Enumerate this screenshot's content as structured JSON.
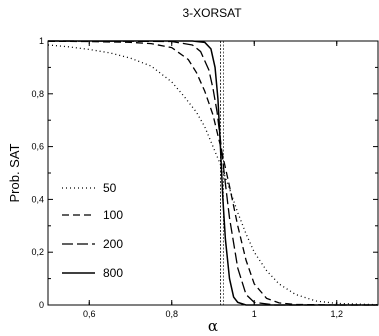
{
  "chart_data": {
    "type": "line",
    "title": "3-XORSAT",
    "xlabel": "α",
    "ylabel": "Prob. SAT",
    "xlim": [
      0.5,
      1.3
    ],
    "ylim": [
      0,
      1
    ],
    "x_ticks": [
      {
        "value": 0.6,
        "label": "0,6"
      },
      {
        "value": 0.8,
        "label": "0,8"
      },
      {
        "value": 1.0,
        "label": "1"
      },
      {
        "value": 1.2,
        "label": "1,2"
      }
    ],
    "y_ticks": [
      {
        "value": 0,
        "label": "0"
      },
      {
        "value": 0.2,
        "label": "0,2"
      },
      {
        "value": 0.4,
        "label": "0,4"
      },
      {
        "value": 0.6,
        "label": "0,6"
      },
      {
        "value": 0.8,
        "label": "0,8"
      },
      {
        "value": 1.0,
        "label": "1"
      }
    ],
    "vline_x": 0.918,
    "grid": false,
    "legend_position": "lower-left",
    "series": [
      {
        "name": "50",
        "style": "dotted",
        "x": [
          0.5,
          0.55,
          0.6,
          0.65,
          0.7,
          0.75,
          0.8,
          0.83,
          0.86,
          0.88,
          0.9,
          0.92,
          0.94,
          0.96,
          0.98,
          1.0,
          1.03,
          1.06,
          1.1,
          1.15,
          1.2,
          1.3
        ],
        "y": [
          0.985,
          0.978,
          0.968,
          0.955,
          0.935,
          0.905,
          0.845,
          0.79,
          0.73,
          0.675,
          0.6,
          0.525,
          0.44,
          0.35,
          0.27,
          0.2,
          0.13,
          0.08,
          0.04,
          0.015,
          0.006,
          0.001
        ]
      },
      {
        "name": "100",
        "style": "dashed",
        "x": [
          0.5,
          0.6,
          0.7,
          0.75,
          0.8,
          0.84,
          0.86,
          0.88,
          0.9,
          0.92,
          0.94,
          0.96,
          0.98,
          1.0,
          1.03,
          1.06,
          1.1,
          1.2,
          1.3
        ],
        "y": [
          0.999,
          0.998,
          0.995,
          0.99,
          0.975,
          0.93,
          0.88,
          0.81,
          0.72,
          0.59,
          0.45,
          0.3,
          0.17,
          0.08,
          0.025,
          0.008,
          0.002,
          0.0,
          0.0
        ]
      },
      {
        "name": "200",
        "style": "longdash",
        "x": [
          0.5,
          0.7,
          0.8,
          0.85,
          0.87,
          0.89,
          0.9,
          0.91,
          0.92,
          0.93,
          0.94,
          0.96,
          0.98,
          1.0,
          1.05,
          1.3
        ],
        "y": [
          1.0,
          0.999,
          0.998,
          0.985,
          0.96,
          0.89,
          0.82,
          0.73,
          0.6,
          0.46,
          0.33,
          0.14,
          0.04,
          0.01,
          0.0,
          0.0
        ]
      },
      {
        "name": "800",
        "style": "solid",
        "x": [
          0.5,
          0.85,
          0.88,
          0.895,
          0.905,
          0.912,
          0.918,
          0.924,
          0.93,
          0.94,
          0.95,
          0.96,
          0.98,
          1.3
        ],
        "y": [
          1.0,
          1.0,
          0.995,
          0.97,
          0.9,
          0.78,
          0.6,
          0.4,
          0.25,
          0.1,
          0.03,
          0.01,
          0.0,
          0.0
        ]
      }
    ]
  }
}
